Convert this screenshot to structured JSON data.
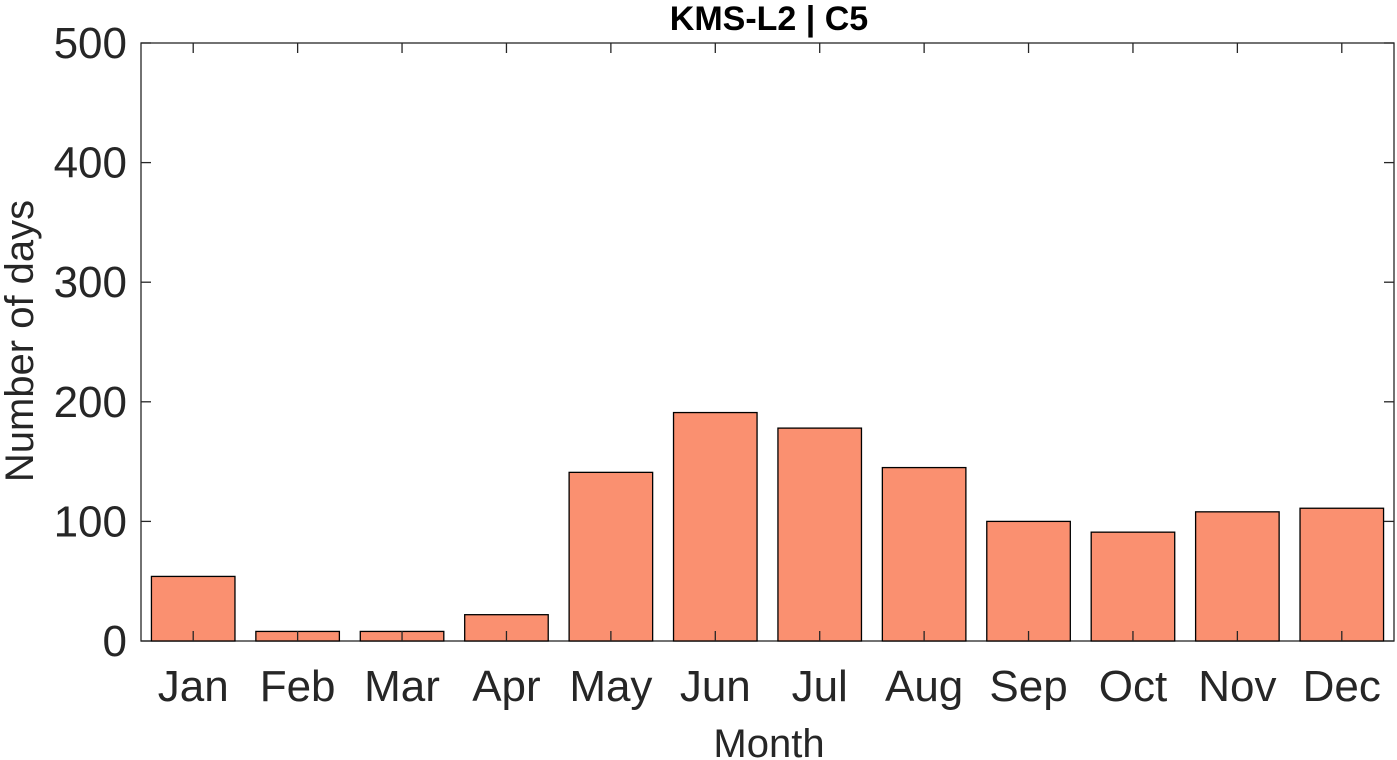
{
  "chart_data": {
    "type": "bar",
    "title": "KMS-L2 | C5",
    "xlabel": "Month",
    "ylabel": "Number of days",
    "categories": [
      "Jan",
      "Feb",
      "Mar",
      "Apr",
      "May",
      "Jun",
      "Jul",
      "Aug",
      "Sep",
      "Oct",
      "Nov",
      "Dec"
    ],
    "values": [
      54,
      8,
      8,
      22,
      141,
      191,
      178,
      145,
      100,
      91,
      108,
      111
    ],
    "ylim": [
      0,
      500
    ],
    "yticks": [
      "0",
      "100",
      "200",
      "300",
      "400",
      "500"
    ],
    "grid": false,
    "legend": "none",
    "bar_color": "#fa9070",
    "edge_color": "#000000"
  }
}
